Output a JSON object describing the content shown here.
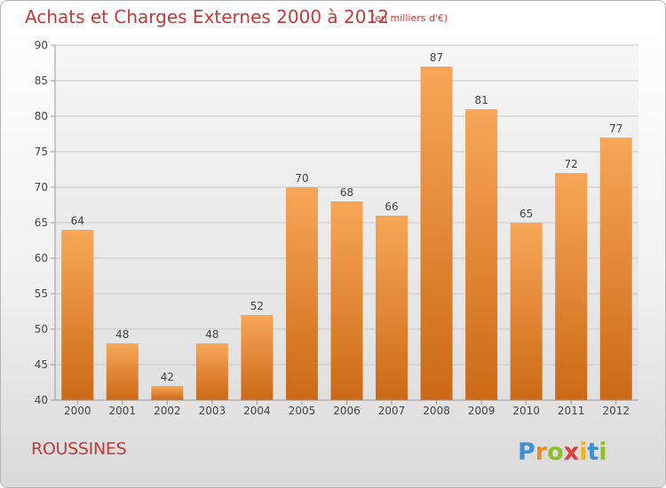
{
  "header": {
    "title": "Achats et Charges Externes 2000 à 2012",
    "unit": "(en milliers d'€)"
  },
  "footer": {
    "town": "ROUSSINES",
    "brand": "Proxiti"
  },
  "colors": {
    "accent": "#c23a3a",
    "bar_top": "#f7a757",
    "bar_bottom": "#cc6916"
  },
  "chart_data": {
    "type": "bar",
    "title": "Achats et Charges Externes 2000 à 2012",
    "subtitle": "(en milliers d'€)",
    "categories": [
      "2000",
      "2001",
      "2002",
      "2003",
      "2004",
      "2005",
      "2006",
      "2007",
      "2008",
      "2009",
      "2010",
      "2011",
      "2012"
    ],
    "values": [
      64,
      48,
      42,
      48,
      52,
      70,
      68,
      66,
      87,
      81,
      65,
      72,
      77
    ],
    "ylim": [
      40,
      90
    ],
    "yticks": [
      40,
      45,
      50,
      55,
      60,
      65,
      70,
      75,
      80,
      85,
      90
    ],
    "grid": true,
    "data_labels": true
  }
}
